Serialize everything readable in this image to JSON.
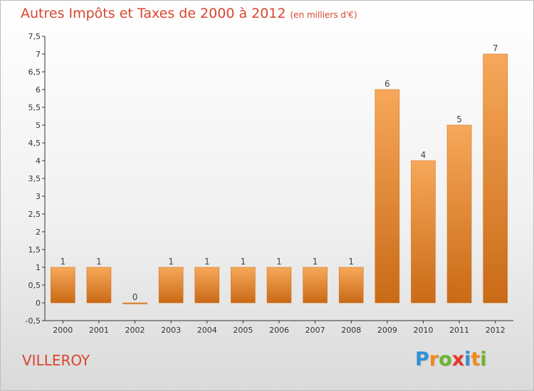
{
  "title": "Autres Impôts et Taxes de 2000 à 2012",
  "subtitle": "(en milliers d'€)",
  "commune": "VILLEROY",
  "logo": {
    "text": "Proxiti",
    "letters": [
      {
        "ch": "P",
        "color": "#2f8fd5"
      },
      {
        "ch": "r",
        "color": "#f08a1c"
      },
      {
        "ch": "o",
        "color": "#6bb52f"
      },
      {
        "ch": "x",
        "color": "#e8332a"
      },
      {
        "ch": "i",
        "color": "#2f8fd5"
      },
      {
        "ch": "t",
        "color": "#f08a1c"
      },
      {
        "ch": "i",
        "color": "#6bb52f"
      }
    ]
  },
  "colors": {
    "title": "#d8452e",
    "bar_top": "#f7a85a",
    "bar_bottom": "#c96a16",
    "bar_stroke": "#d2741c",
    "axis": "#333333"
  },
  "chart_data": {
    "type": "bar",
    "categories": [
      "2000",
      "2001",
      "2002",
      "2003",
      "2004",
      "2005",
      "2006",
      "2007",
      "2008",
      "2009",
      "2010",
      "2011",
      "2012"
    ],
    "values": [
      1,
      1,
      0,
      1,
      1,
      1,
      1,
      1,
      1,
      6,
      4,
      5,
      7
    ],
    "labels": [
      "1",
      "1",
      "0",
      "1",
      "1",
      "1",
      "1",
      "1",
      "1",
      "6",
      "4",
      "5",
      "7"
    ],
    "yticks": [
      -0.5,
      0,
      0.5,
      1,
      1.5,
      2,
      2.5,
      3,
      3.5,
      4,
      4.5,
      5,
      5.5,
      6,
      6.5,
      7,
      7.5
    ],
    "ytick_labels": [
      "-0,5",
      "0",
      "0,5",
      "1",
      "1,5",
      "2",
      "2,5",
      "3",
      "3,5",
      "4",
      "4,5",
      "5",
      "5,5",
      "6",
      "6,5",
      "7",
      "7,5"
    ],
    "ylim": [
      -0.5,
      7.5
    ],
    "grid": false
  }
}
